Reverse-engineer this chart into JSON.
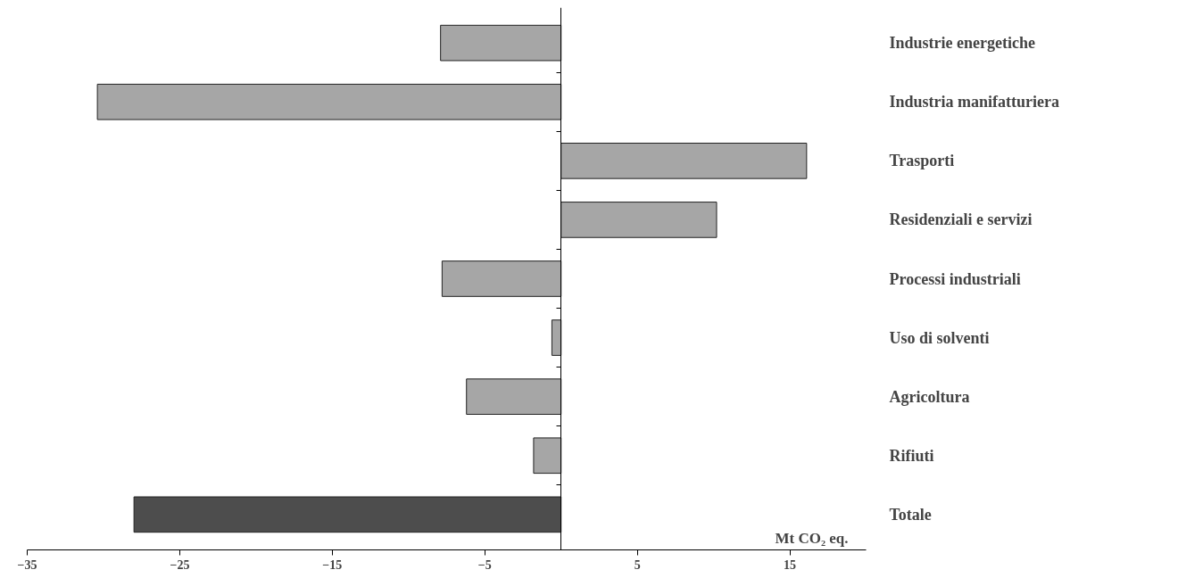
{
  "chart_data": {
    "type": "bar",
    "orientation": "horizontal",
    "xlabel": "Mt CO₂ eq.",
    "categories": [
      "Industrie energetiche",
      "Industria manifatturiera",
      "Trasporti",
      "Residenziali e servizi",
      "Processi industriali",
      "Uso di solventi",
      "Agricoltura",
      "Rifiuti",
      "Totale"
    ],
    "values": [
      -7.9,
      -30.4,
      16.1,
      10.2,
      -7.8,
      -0.6,
      -6.2,
      -1.8,
      -28.0
    ],
    "colors": [
      "#a6a6a6",
      "#a6a6a6",
      "#a6a6a6",
      "#a6a6a6",
      "#a6a6a6",
      "#a6a6a6",
      "#a6a6a6",
      "#a6a6a6",
      "#4d4d4d"
    ],
    "xlim": [
      -35,
      20
    ],
    "xticks": [
      -35,
      -25,
      -15,
      -5,
      5,
      15
    ],
    "grid": false
  }
}
